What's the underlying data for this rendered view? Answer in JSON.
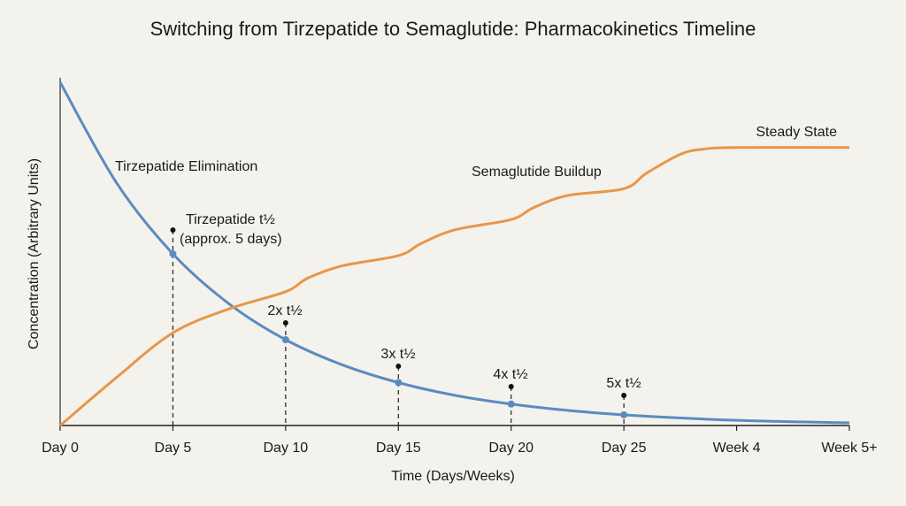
{
  "chart_data": {
    "type": "line",
    "title": "Switching from Tirzepatide to Semaglutide: Pharmacokinetics Timeline",
    "xlabel": "Time (Days/Weeks)",
    "ylabel": "Concentration (Arbitrary Units)",
    "x_ticks": [
      {
        "x": 0,
        "label": "Day 0"
      },
      {
        "x": 5,
        "label": "Day 5"
      },
      {
        "x": 10,
        "label": "Day 10"
      },
      {
        "x": 15,
        "label": "Day 15"
      },
      {
        "x": 20,
        "label": "Day 20"
      },
      {
        "x": 25,
        "label": "Day 25"
      },
      {
        "x": 30,
        "label": "Week 4"
      },
      {
        "x": 35,
        "label": "Week 5+"
      }
    ],
    "xlim": [
      0,
      35
    ],
    "ylim": [
      0,
      100
    ],
    "grid": false,
    "series": [
      {
        "name": "Tirzepatide Elimination",
        "color": "#5b8bc0",
        "x": [
          0,
          2.5,
          5,
          7.5,
          10,
          12.5,
          15,
          17.5,
          20,
          22.5,
          25,
          30,
          35
        ],
        "y": [
          100,
          70.7,
          50,
          35.4,
          25,
          17.7,
          12.5,
          8.8,
          6.25,
          4.4,
          3.1,
          1.5,
          0.8
        ]
      },
      {
        "name": "Semaglutide Buildup",
        "color": "#e8964a",
        "x": [
          0,
          2.5,
          5,
          7.5,
          10,
          11,
          12.5,
          15,
          16,
          17.5,
          20,
          21,
          22.5,
          25,
          26,
          27.5,
          28.5,
          30,
          35
        ],
        "y": [
          0,
          14,
          27,
          34,
          39,
          43,
          46.5,
          49.5,
          53,
          57,
          60,
          63.5,
          67,
          69,
          73.5,
          79,
          80.5,
          81,
          81
        ]
      }
    ],
    "markers": [
      {
        "x": 5,
        "y": 50,
        "label_lines": [
          "Tirzepatide t½",
          "(approx. 5 days)"
        ]
      },
      {
        "x": 10,
        "y": 25,
        "label_lines": [
          "2x t½"
        ]
      },
      {
        "x": 15,
        "y": 12.5,
        "label_lines": [
          "3x t½"
        ]
      },
      {
        "x": 20,
        "y": 6.25,
        "label_lines": [
          "4x t½"
        ]
      },
      {
        "x": 25,
        "y": 3.1,
        "label_lines": [
          "5x t½"
        ]
      }
    ],
    "annotations": [
      {
        "text": "Tirzepatide Elimination",
        "series": 0
      },
      {
        "text": "Semaglutide Buildup",
        "series": 1
      },
      {
        "text": "Steady State",
        "series": 1
      }
    ]
  }
}
